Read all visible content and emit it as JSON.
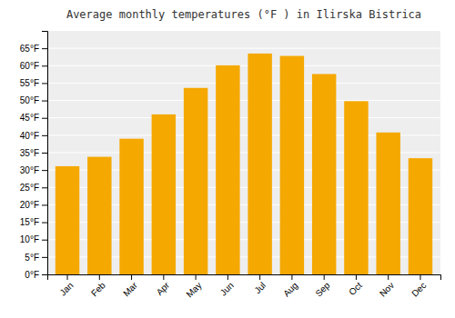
{
  "chart_data": {
    "type": "bar",
    "title": "Average monthly temperatures (°F ) in Ilirska Bistrica",
    "categories": [
      "Jan",
      "Feb",
      "Mar",
      "Apr",
      "May",
      "Jun",
      "Jul",
      "Aug",
      "Sep",
      "Oct",
      "Nov",
      "Dec"
    ],
    "values": [
      31.1,
      33.8,
      39.0,
      46.0,
      53.6,
      60.1,
      63.5,
      62.8,
      57.6,
      49.8,
      40.8,
      33.4
    ],
    "color": "#F5A800",
    "ylim": [
      0,
      70
    ],
    "yticks": [
      {
        "value": 0,
        "label": "0°F"
      },
      {
        "value": 5,
        "label": "5°F"
      },
      {
        "value": 10,
        "label": "10°F"
      },
      {
        "value": 15,
        "label": "15°F"
      },
      {
        "value": 20,
        "label": "20°F"
      },
      {
        "value": 25,
        "label": "25°F"
      },
      {
        "value": 30,
        "label": "30°F"
      },
      {
        "value": 35,
        "label": "35°F"
      },
      {
        "value": 40,
        "label": "40°F"
      },
      {
        "value": 45,
        "label": "45°F"
      },
      {
        "value": 50,
        "label": "50°F"
      },
      {
        "value": 55,
        "label": "55°F"
      },
      {
        "value": 60,
        "label": "60°F"
      },
      {
        "value": 65,
        "label": "65°F"
      }
    ],
    "grid": true
  }
}
